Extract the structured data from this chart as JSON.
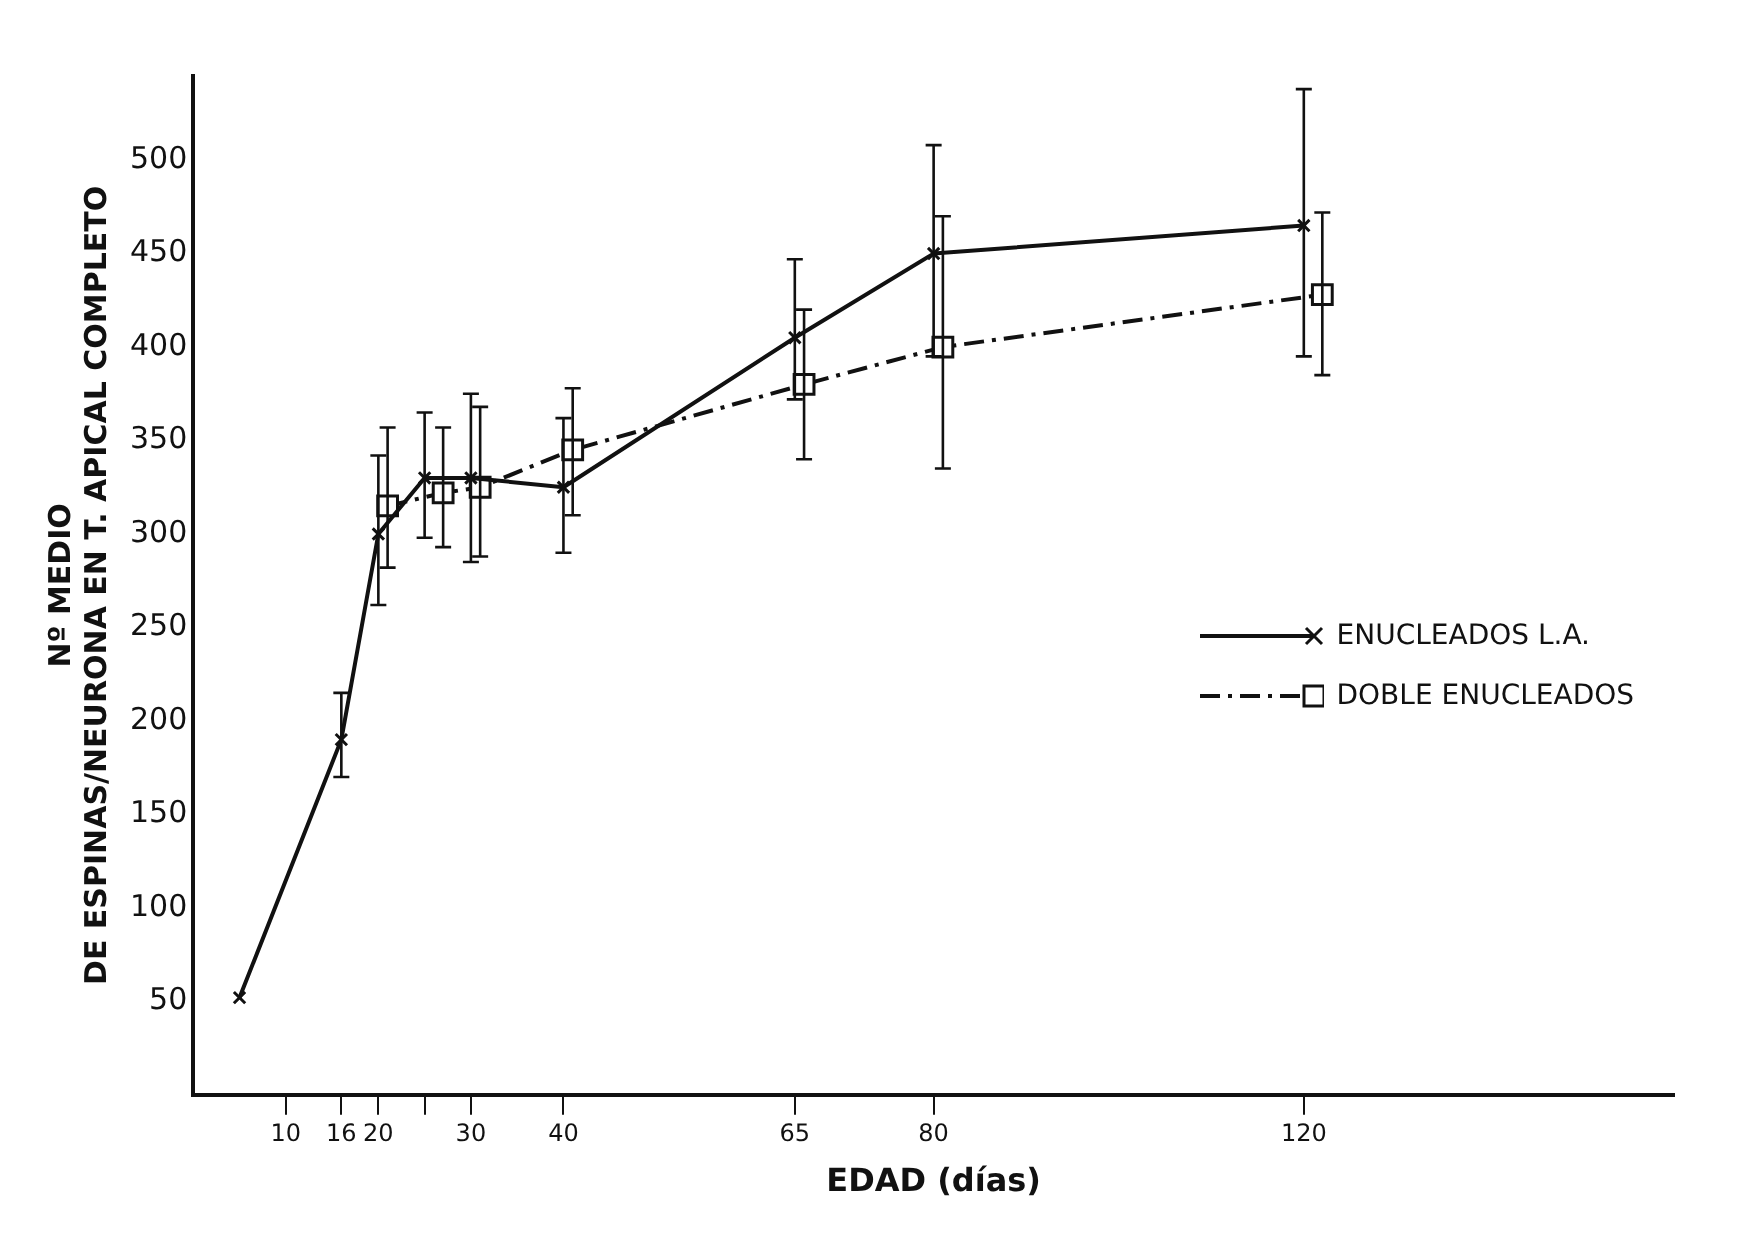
{
  "chart_data": {
    "type": "line",
    "xlabel": "EDAD (días)",
    "ylabel": "Nº MEDIO\nDE ESPINAS/NEURONA EN T. APICAL COMPLETO",
    "xlim": [
      0,
      160
    ],
    "xticks": [
      10,
      16,
      20,
      {
        "value": 25,
        "label": null
      },
      30,
      40,
      65,
      80,
      120
    ],
    "ylim": [
      0,
      545
    ],
    "yticks": [
      50,
      100,
      150,
      200,
      250,
      300,
      350,
      400,
      450,
      500
    ],
    "grid": false,
    "legend": "center right",
    "series": [
      {
        "name": "ENUCLEADOS L.A.",
        "color": "#111111",
        "marker": "cross",
        "line_style": "solid",
        "x": [
          5,
          16,
          20,
          25,
          30,
          40,
          65,
          80,
          120
        ],
        "values": [
          52,
          190,
          300,
          330,
          330,
          325,
          405,
          450,
          465
        ],
        "errors": [
          null,
          [
            170,
            215
          ],
          [
            262,
            342
          ],
          [
            298,
            365
          ],
          [
            285,
            375
          ],
          [
            290,
            362
          ],
          [
            372,
            447
          ],
          [
            395,
            508
          ],
          [
            395,
            538
          ]
        ]
      },
      {
        "name": "DOBLE ENUCLEADOS",
        "color": "#111111",
        "marker": "square",
        "line_style": "dashed",
        "x": [
          21,
          27,
          31,
          41,
          66,
          81,
          122
        ],
        "values": [
          315,
          322,
          325,
          345,
          380,
          400,
          428
        ],
        "errors": [
          [
            282,
            357
          ],
          [
            293,
            357
          ],
          [
            288,
            368
          ],
          [
            310,
            378
          ],
          [
            340,
            420
          ],
          [
            335,
            470
          ],
          [
            385,
            472
          ]
        ]
      }
    ]
  }
}
